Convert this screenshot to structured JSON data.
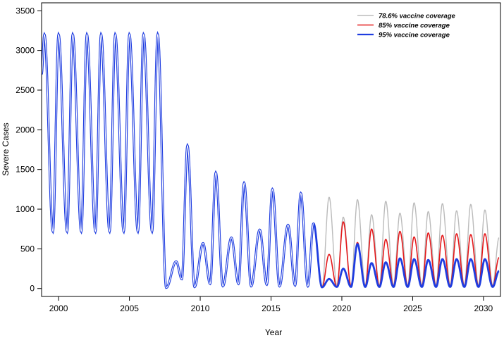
{
  "chart_data": {
    "type": "line",
    "title": "",
    "xlabel": "Year",
    "ylabel": "Severe Cases",
    "xlim": [
      1998.8,
      2031.2
    ],
    "ylim": [
      -100,
      3600
    ],
    "xticks": [
      2000,
      2005,
      2010,
      2015,
      2020,
      2025,
      2030
    ],
    "yticks": [
      0,
      500,
      1000,
      1500,
      2000,
      2500,
      3000,
      3500
    ],
    "grid": false,
    "legend_position": "top-right",
    "history": {
      "peak_years": [
        1999.0,
        2000.0,
        2001.0,
        2002.0,
        2003.0,
        2004.0,
        2005.0,
        2006.0,
        2007.0,
        2008.3,
        2009.1,
        2010.2,
        2011.1,
        2012.2,
        2013.1,
        2014.2,
        2015.1,
        2016.2,
        2017.1,
        2018.0
      ],
      "peak_values": [
        3200,
        3200,
        3200,
        3200,
        3200,
        3200,
        3200,
        3200,
        3200,
        340,
        1800,
        570,
        1460,
        640,
        1330,
        740,
        1250,
        800,
        1200,
        820
      ],
      "trough_years": [
        1999.6,
        2000.6,
        2001.6,
        2002.6,
        2003.6,
        2004.6,
        2005.6,
        2006.6,
        2007.6,
        2008.7,
        2009.6,
        2010.7,
        2011.6,
        2012.7,
        2013.6,
        2014.7,
        2015.6,
        2016.7,
        2017.6
      ],
      "trough_values": [
        720,
        720,
        720,
        720,
        720,
        720,
        720,
        720,
        10,
        120,
        20,
        60,
        30,
        60,
        30,
        50,
        30,
        40,
        30
      ]
    },
    "series": [
      {
        "name": "78.6% vaccine coverage",
        "color": "#bbbbbb",
        "peak_years": [
          2019.1,
          2020.1,
          2021.1,
          2022.1,
          2023.1,
          2024.1,
          2025.1,
          2026.1,
          2027.1,
          2028.1,
          2029.1,
          2030.1,
          2031.1
        ],
        "peak_values": [
          1150,
          900,
          1120,
          930,
          1100,
          950,
          1080,
          970,
          1070,
          980,
          1060,
          990,
          640
        ],
        "trough_values": [
          40,
          40,
          40,
          40,
          40,
          40,
          40,
          40,
          40,
          40,
          40,
          40
        ]
      },
      {
        "name": "85% vaccine coverage",
        "color": "#e41a1c",
        "peak_years": [
          2019.1,
          2020.1,
          2021.1,
          2022.1,
          2023.1,
          2024.1,
          2025.1,
          2026.1,
          2027.1,
          2028.1,
          2029.1,
          2030.1,
          2031.1
        ],
        "peak_values": [
          430,
          840,
          580,
          750,
          620,
          720,
          650,
          700,
          670,
          690,
          680,
          690,
          390
        ],
        "trough_values": [
          20,
          30,
          30,
          30,
          30,
          30,
          30,
          30,
          30,
          30,
          30,
          30
        ]
      },
      {
        "name": "95% vaccine coverage",
        "color": "#1f3de0",
        "peak_years": [
          2019.1,
          2020.1,
          2021.1,
          2022.1,
          2023.1,
          2024.1,
          2025.1,
          2026.1,
          2027.1,
          2028.1,
          2029.1,
          2030.1,
          2031.1
        ],
        "peak_values": [
          120,
          250,
          560,
          320,
          330,
          380,
          370,
          360,
          370,
          370,
          370,
          370,
          220
        ],
        "trough_values": [
          20,
          20,
          20,
          20,
          20,
          20,
          20,
          20,
          20,
          20,
          20,
          20
        ]
      }
    ]
  }
}
